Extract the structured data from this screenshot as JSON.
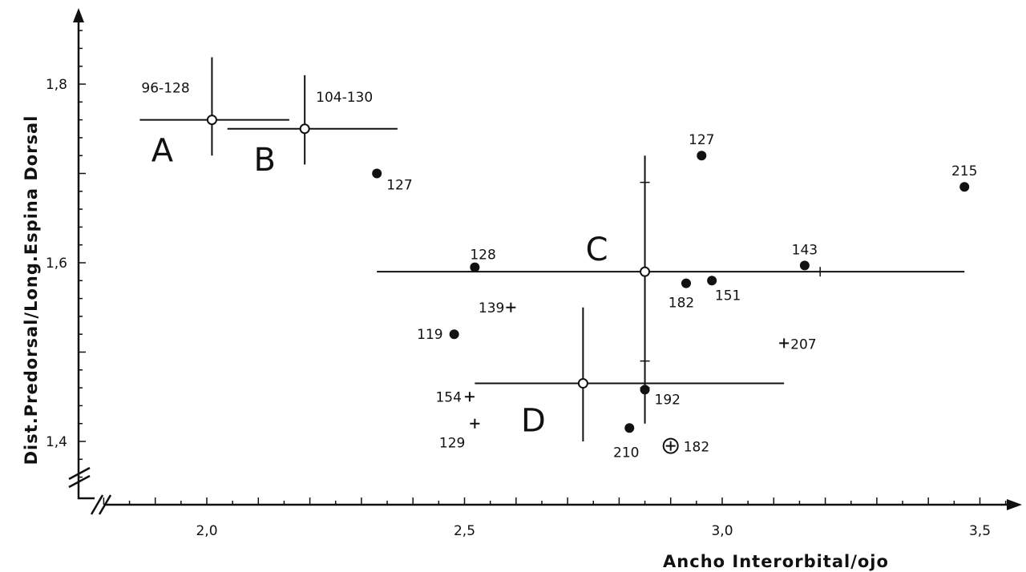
{
  "chart_data": {
    "type": "scatter",
    "title": "",
    "xlabel": "Ancho Interorbital/ojo",
    "ylabel": "Dist.Predorsal/Long.Espina Dorsal",
    "xlim": [
      1.75,
      3.6
    ],
    "ylim": [
      1.33,
      1.88
    ],
    "xticks": [
      {
        "value": 2.0,
        "label": "2,0"
      },
      {
        "value": 2.5,
        "label": "2,5"
      },
      {
        "value": 3.0,
        "label": "3,0"
      },
      {
        "value": 3.5,
        "label": "3,5"
      }
    ],
    "yticks": [
      {
        "value": 1.4,
        "label": "1,4"
      },
      {
        "value": 1.6,
        "label": "1,6"
      },
      {
        "value": 1.8,
        "label": "1,8"
      }
    ],
    "grid": false,
    "groups": [
      {
        "label": "A",
        "range_label": "96-128",
        "x": 2.01,
        "y": 1.76,
        "x_range": [
          1.87,
          2.16
        ],
        "y_range": [
          1.72,
          1.83
        ]
      },
      {
        "label": "B",
        "range_label": "104-130",
        "x": 2.19,
        "y": 1.75,
        "x_range": [
          2.04,
          2.37
        ],
        "y_range": [
          1.71,
          1.81
        ]
      },
      {
        "label": "C",
        "range_label": "",
        "x": 2.85,
        "y": 1.59,
        "x_range": [
          2.33,
          3.47
        ],
        "y_range": [
          1.42,
          1.72
        ]
      },
      {
        "label": "D",
        "range_label": "",
        "x": 2.73,
        "y": 1.465,
        "x_range": [
          2.52,
          3.12
        ],
        "y_range": [
          1.4,
          1.55
        ]
      }
    ],
    "series": [
      {
        "marker": "filled-circle",
        "points": [
          {
            "x": 2.33,
            "y": 1.7,
            "label": "127"
          },
          {
            "x": 2.96,
            "y": 1.72,
            "label": "127"
          },
          {
            "x": 3.47,
            "y": 1.685,
            "label": "215"
          },
          {
            "x": 2.52,
            "y": 1.595,
            "label": "128"
          },
          {
            "x": 3.16,
            "y": 1.597,
            "label": "143"
          },
          {
            "x": 2.93,
            "y": 1.577,
            "label": "182"
          },
          {
            "x": 2.98,
            "y": 1.58,
            "label": "151"
          },
          {
            "x": 2.48,
            "y": 1.52,
            "label": "119"
          },
          {
            "x": 2.85,
            "y": 1.458,
            "label": "192"
          },
          {
            "x": 2.82,
            "y": 1.415,
            "label": "210"
          }
        ]
      },
      {
        "marker": "plus",
        "points": [
          {
            "x": 2.59,
            "y": 1.55,
            "label": "139"
          },
          {
            "x": 3.12,
            "y": 1.51,
            "label": "207"
          },
          {
            "x": 2.51,
            "y": 1.45,
            "label": "154"
          },
          {
            "x": 2.52,
            "y": 1.42,
            "label": "129"
          }
        ]
      },
      {
        "marker": "circled-plus",
        "points": [
          {
            "x": 2.9,
            "y": 1.395,
            "label": "182"
          }
        ]
      }
    ]
  }
}
